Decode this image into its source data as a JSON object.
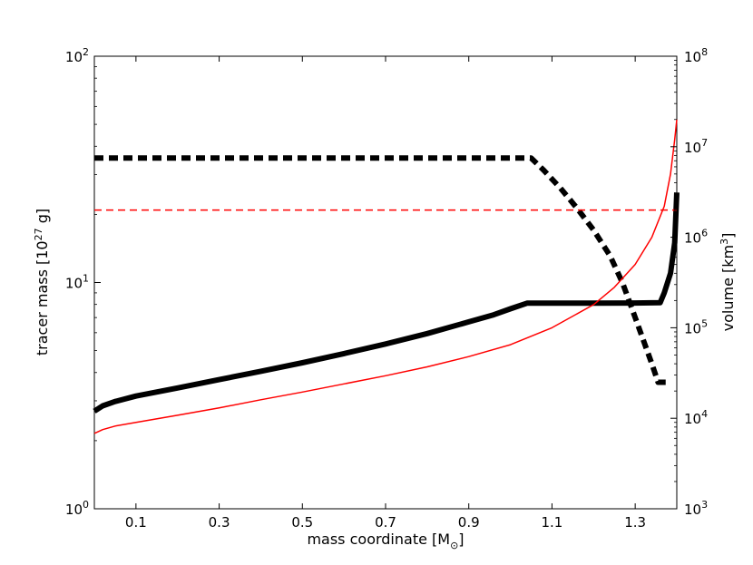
{
  "chart_data": {
    "type": "line",
    "xlabel": "mass coordinate [M",
    "xlabel_sub": "⊙",
    "xlabel_end": "]",
    "ylabel_left": "tracer mass [10",
    "ylabel_left_sup": "27",
    "ylabel_left_end": " g]",
    "ylabel_right": "volume [km",
    "ylabel_right_sup": "3",
    "ylabel_right_end": "]",
    "xlim": [
      0.0,
      1.4
    ],
    "ylim_left": [
      1,
      100
    ],
    "ylim_right": [
      1000,
      100000000
    ],
    "yscale_left": "log",
    "yscale_right": "log",
    "x_ticks": [
      {
        "value": 0.1,
        "label": "0.1"
      },
      {
        "value": 0.3,
        "label": "0.3"
      },
      {
        "value": 0.5,
        "label": "0.5"
      },
      {
        "value": 0.7,
        "label": "0.7"
      },
      {
        "value": 0.9,
        "label": "0.9"
      },
      {
        "value": 1.1,
        "label": "1.1"
      },
      {
        "value": 1.3,
        "label": "1.3"
      }
    ],
    "y_left_ticks": [
      {
        "value": 1,
        "base": "10",
        "exp": "0"
      },
      {
        "value": 10,
        "base": "10",
        "exp": "1"
      },
      {
        "value": 100,
        "base": "10",
        "exp": "2"
      }
    ],
    "y_right_ticks": [
      {
        "value": 1000,
        "base": "10",
        "exp": "3"
      },
      {
        "value": 10000,
        "base": "10",
        "exp": "4"
      },
      {
        "value": 100000,
        "base": "10",
        "exp": "5"
      },
      {
        "value": 1000000,
        "base": "10",
        "exp": "6"
      },
      {
        "value": 10000000,
        "base": "10",
        "exp": "7"
      },
      {
        "value": 100000000,
        "base": "10",
        "exp": "8"
      }
    ],
    "series": [
      {
        "axis": "left",
        "color": "#000000",
        "style": "solid",
        "weight": "thick",
        "x": [
          0.0,
          0.02,
          0.05,
          0.1,
          0.2,
          0.3,
          0.4,
          0.5,
          0.6,
          0.7,
          0.8,
          0.9,
          0.96,
          1.0,
          1.04,
          1.1,
          1.2,
          1.3,
          1.36,
          1.37,
          1.385,
          1.395,
          1.4
        ],
        "y": [
          2.7,
          2.85,
          2.98,
          3.15,
          3.42,
          3.72,
          4.05,
          4.42,
          4.85,
          5.35,
          5.95,
          6.7,
          7.2,
          7.65,
          8.1,
          8.1,
          8.1,
          8.12,
          8.15,
          9.0,
          11.0,
          15.0,
          25.0
        ]
      },
      {
        "axis": "right",
        "color": "#000000",
        "style": "dashed",
        "weight": "thick",
        "x": [
          0.0,
          1.05,
          1.08,
          1.12,
          1.16,
          1.2,
          1.24,
          1.27,
          1.3,
          1.34,
          1.355,
          1.38
        ],
        "y": [
          7500000,
          7500000,
          5500000,
          3500000,
          2100000,
          1200000,
          620000,
          310000,
          130000,
          40000,
          25000,
          25000
        ]
      },
      {
        "axis": "right",
        "color": "#ff0000",
        "style": "solid",
        "weight": "thin",
        "x": [
          0.0,
          0.02,
          0.05,
          0.1,
          0.2,
          0.3,
          0.4,
          0.5,
          0.6,
          0.7,
          0.8,
          0.9,
          1.0,
          1.1,
          1.2,
          1.25,
          1.3,
          1.34,
          1.37,
          1.385,
          1.395,
          1.4
        ],
        "y": [
          6800,
          7500,
          8200,
          9000,
          10800,
          13000,
          16000,
          19500,
          24000,
          29500,
          37000,
          48000,
          65000,
          100000,
          180000,
          280000,
          500000,
          1000000,
          2200000,
          5000000,
          12000000,
          20000000
        ]
      },
      {
        "axis": "right",
        "color": "#ff0000",
        "style": "dashed",
        "weight": "thin",
        "x": [
          0.0,
          1.4
        ],
        "y": [
          2000000,
          2000000
        ]
      }
    ]
  }
}
